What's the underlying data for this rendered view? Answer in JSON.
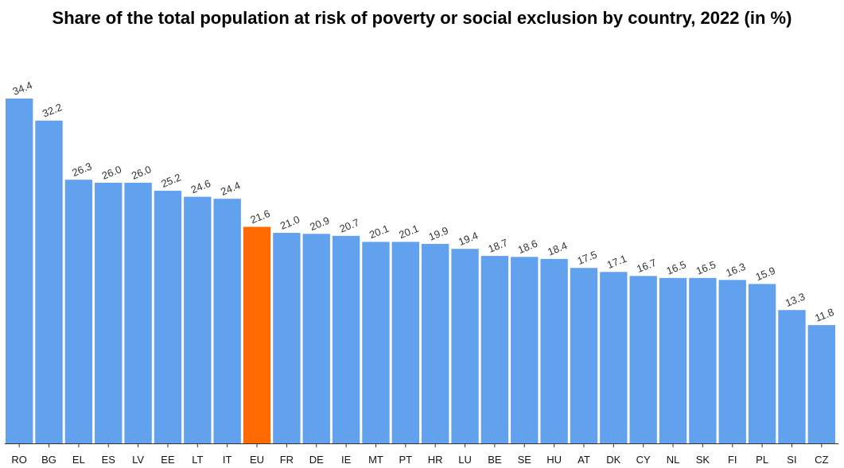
{
  "chart_data": {
    "type": "bar",
    "title": "Share of the total population at risk of poverty or social exclusion by country, 2022 (in %)",
    "xlabel": "",
    "ylabel": "",
    "ylim": [
      0,
      34.4
    ],
    "grid": false,
    "legend": "none",
    "colors": {
      "default": "#62a1ee",
      "highlight": "#ff6a00",
      "axis": "#333333"
    },
    "highlight_category": "EU",
    "categories": [
      "RO",
      "BG",
      "EL",
      "ES",
      "LV",
      "EE",
      "LT",
      "IT",
      "EU",
      "FR",
      "DE",
      "IE",
      "MT",
      "PT",
      "HR",
      "LU",
      "BE",
      "SE",
      "HU",
      "AT",
      "DK",
      "CY",
      "NL",
      "SK",
      "FI",
      "PL",
      "SI",
      "CZ"
    ],
    "values": [
      34.4,
      32.2,
      26.3,
      26.0,
      26.0,
      25.2,
      24.6,
      24.4,
      21.6,
      21.0,
      20.9,
      20.7,
      20.1,
      20.1,
      19.9,
      19.4,
      18.7,
      18.6,
      18.4,
      17.5,
      17.1,
      16.7,
      16.5,
      16.5,
      16.3,
      15.9,
      13.3,
      11.8
    ],
    "value_labels": [
      "34.4",
      "32.2",
      "26.3",
      "26.0",
      "26.0",
      "25.2",
      "24.6",
      "24.4",
      "21.6",
      "21.0",
      "20.9",
      "20.7",
      "20.1",
      "20.1",
      "19.9",
      "19.4",
      "18.7",
      "18.6",
      "18.4",
      "17.5",
      "17.1",
      "16.7",
      "16.5",
      "16.5",
      "16.3",
      "15.9",
      "13.3",
      "11.8"
    ]
  }
}
